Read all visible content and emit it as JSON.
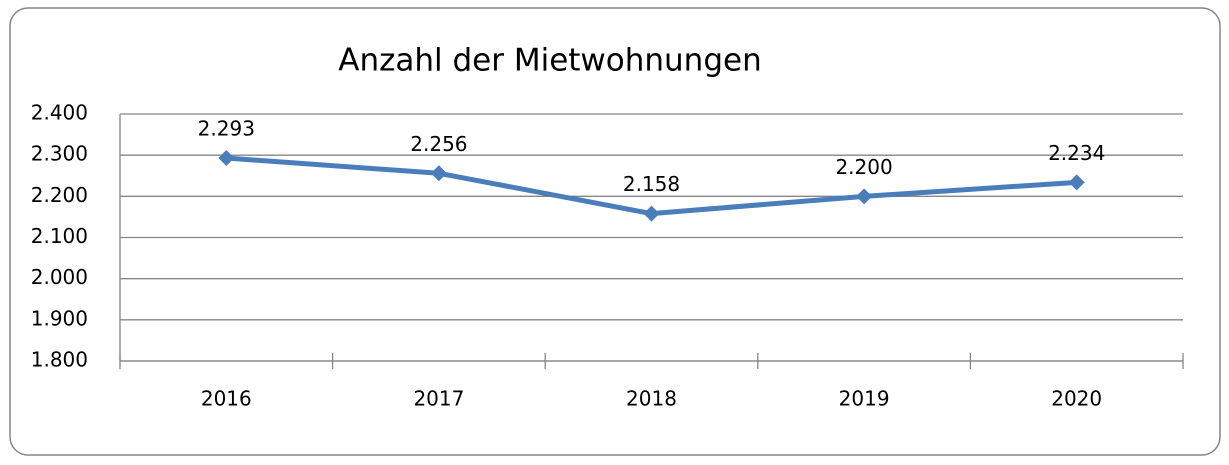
{
  "chart_data": {
    "type": "line",
    "title": "Anzahl der Mietwohnungen",
    "categories": [
      "2016",
      "2017",
      "2018",
      "2019",
      "2020"
    ],
    "series": [
      {
        "name": "Anzahl der Mietwohnungen",
        "color": "#4a7ebb",
        "values": [
          2293,
          2256,
          2158,
          2200,
          2234
        ],
        "value_labels": [
          "2.293",
          "2.256",
          "2.158",
          "2.200",
          "2.234"
        ]
      }
    ],
    "ylim": [
      1800,
      2400
    ],
    "yticks": [
      {
        "value": 1800,
        "label": "1.800"
      },
      {
        "value": 1900,
        "label": "1.900"
      },
      {
        "value": 2000,
        "label": "2.000"
      },
      {
        "value": 2100,
        "label": "2.100"
      },
      {
        "value": 2200,
        "label": "2.200"
      },
      {
        "value": 2300,
        "label": "2.300"
      },
      {
        "value": 2400,
        "label": "2.400"
      }
    ],
    "grid": true
  }
}
